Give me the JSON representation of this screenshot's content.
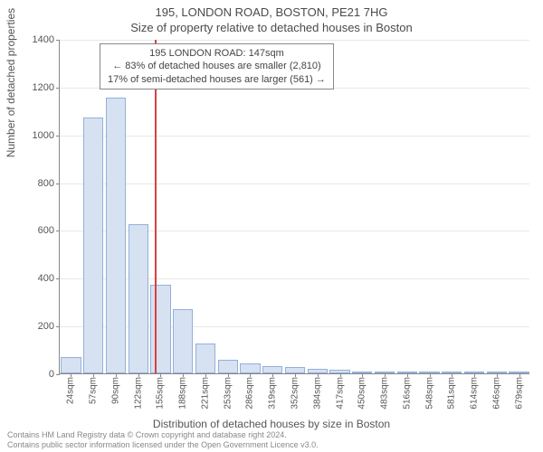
{
  "header": {
    "address": "195, LONDON ROAD, BOSTON, PE21 7HG",
    "subtitle": "Size of property relative to detached houses in Boston"
  },
  "annotation": {
    "line1": "195 LONDON ROAD: 147sqm",
    "line2": "← 83% of detached houses are smaller (2,810)",
    "line3": "17% of semi-detached houses are larger (561) →"
  },
  "chart": {
    "type": "bar",
    "ylabel": "Number of detached properties",
    "xlabel": "Distribution of detached houses by size in Boston",
    "ymax": 1400,
    "ytick_step": 200,
    "bar_fill": "#d6e2f2",
    "bar_stroke": "#94b0d8",
    "grid_color": "#e8e8e8",
    "ref_color": "#d84040",
    "ref_value": 147,
    "categories": [
      "24sqm",
      "57sqm",
      "90sqm",
      "122sqm",
      "155sqm",
      "188sqm",
      "221sqm",
      "253sqm",
      "286sqm",
      "319sqm",
      "352sqm",
      "384sqm",
      "417sqm",
      "450sqm",
      "483sqm",
      "516sqm",
      "548sqm",
      "581sqm",
      "614sqm",
      "646sqm",
      "679sqm"
    ],
    "values": [
      70,
      1070,
      1155,
      625,
      370,
      270,
      125,
      55,
      40,
      30,
      25,
      20,
      15,
      5,
      3,
      2,
      2,
      1,
      1,
      1,
      1
    ]
  },
  "footer": {
    "line1": "Contains HM Land Registry data © Crown copyright and database right 2024.",
    "line2": "Contains public sector information licensed under the Open Government Licence v3.0."
  }
}
